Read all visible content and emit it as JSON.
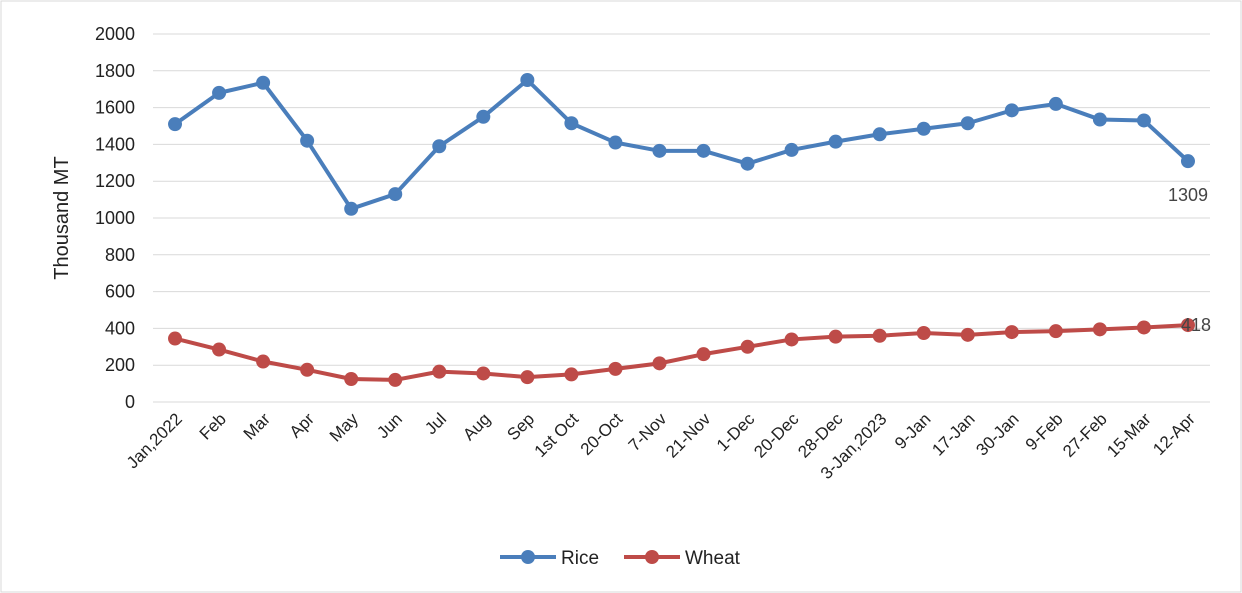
{
  "chart_data": {
    "type": "line",
    "title": "",
    "xlabel": "",
    "ylabel": "Thousand MT",
    "ylim": [
      0,
      2000
    ],
    "yticks": [
      0,
      200,
      400,
      600,
      800,
      1000,
      1200,
      1400,
      1600,
      1800,
      2000
    ],
    "grid": "horizontal",
    "legend_position": "bottom",
    "categories": [
      "Jan,2022",
      "Feb",
      "Mar",
      "Apr",
      "May",
      "Jun",
      "Jul",
      "Aug",
      "Sep",
      "1st Oct",
      "20-Oct",
      "7-Nov",
      "21-Nov",
      "1-Dec",
      "20-Dec",
      "28-Dec",
      "3-Jan,2023",
      "9-Jan",
      "17-Jan",
      "30-Jan",
      "9-Feb",
      "27-Feb",
      "15-Mar",
      "12-Apr"
    ],
    "series": [
      {
        "name": "Rice",
        "color": "#4a7ebb",
        "values": [
          1510,
          1680,
          1735,
          1420,
          1050,
          1130,
          1390,
          1550,
          1750,
          1515,
          1410,
          1365,
          1365,
          1295,
          1370,
          1415,
          1455,
          1485,
          1515,
          1585,
          1620,
          1535,
          1530,
          1309
        ],
        "data_labels": [
          {
            "index": 23,
            "text": "1309"
          }
        ]
      },
      {
        "name": "Wheat",
        "color": "#be4b48",
        "values": [
          345,
          285,
          220,
          175,
          125,
          120,
          165,
          155,
          135,
          150,
          180,
          210,
          260,
          300,
          340,
          355,
          360,
          375,
          365,
          380,
          385,
          395,
          405,
          418
        ],
        "data_labels": [
          {
            "index": 23,
            "text": "418"
          }
        ]
      }
    ]
  }
}
